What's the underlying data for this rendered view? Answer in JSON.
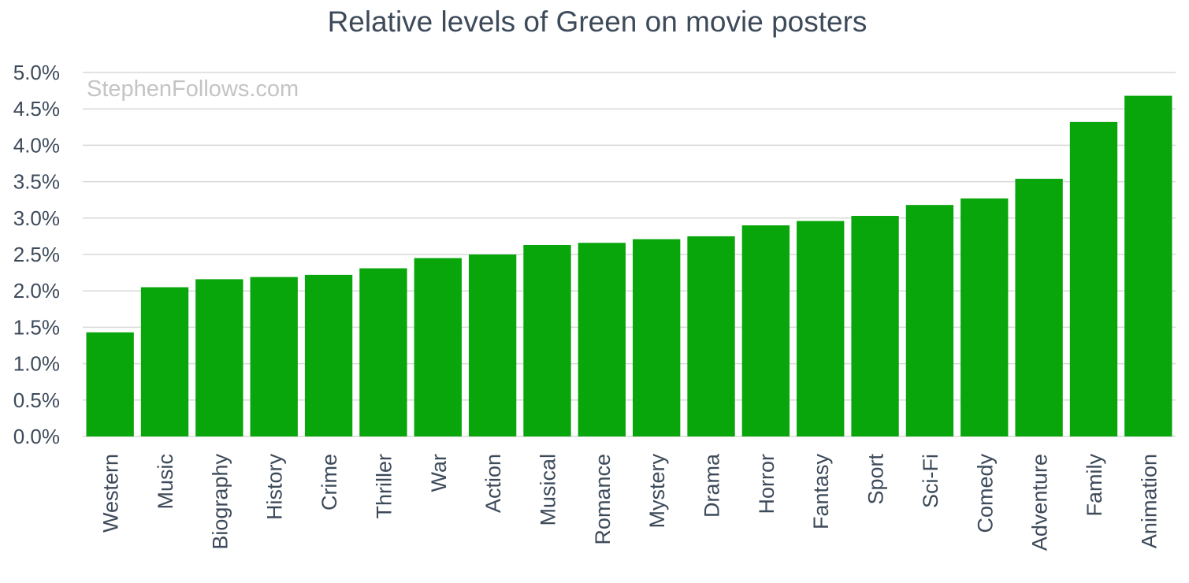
{
  "chart_data": {
    "type": "bar",
    "title": "Relative levels of Green on movie posters",
    "watermark": "StephenFollows.com",
    "xlabel": "",
    "ylabel": "",
    "ylim": [
      0,
      5.0
    ],
    "y_ticks": [
      "0.0%",
      "0.5%",
      "1.0%",
      "1.5%",
      "2.0%",
      "2.5%",
      "3.0%",
      "3.5%",
      "4.0%",
      "4.5%",
      "5.0%"
    ],
    "y_tick_values": [
      0,
      0.5,
      1.0,
      1.5,
      2.0,
      2.5,
      3.0,
      3.5,
      4.0,
      4.5,
      5.0
    ],
    "grid": true,
    "legend": "none",
    "bar_color": "#08a50b",
    "categories": [
      "Western",
      "Music",
      "Biography",
      "History",
      "Crime",
      "Thriller",
      "War",
      "Action",
      "Musical",
      "Romance",
      "Mystery",
      "Drama",
      "Horror",
      "Fantasy",
      "Sport",
      "Sci-Fi",
      "Comedy",
      "Adventure",
      "Family",
      "Animation"
    ],
    "values": [
      1.43,
      2.05,
      2.16,
      2.19,
      2.22,
      2.31,
      2.45,
      2.5,
      2.63,
      2.66,
      2.71,
      2.75,
      2.9,
      2.96,
      3.03,
      3.18,
      3.27,
      3.54,
      4.32,
      4.68
    ]
  }
}
